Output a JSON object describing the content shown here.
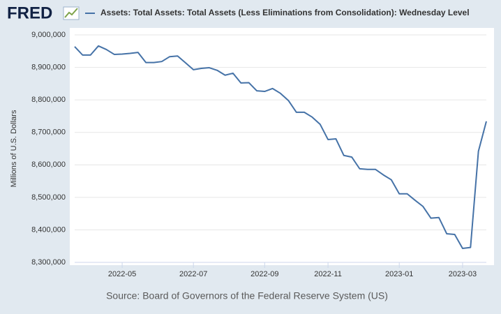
{
  "logo": "FRED",
  "chart_data": {
    "type": "line",
    "title": "Assets: Total Assets: Total Assets (Less Eliminations from Consolidation): Wednesday Level",
    "y_label": "Millions of U.S. Dollars",
    "source": "Source: Board of Governors of the Federal Reserve System (US)",
    "categories": [
      null,
      null,
      null,
      null,
      null,
      null,
      "2022-05",
      null,
      null,
      null,
      null,
      null,
      null,
      null,
      null,
      "2022-07",
      null,
      null,
      null,
      null,
      null,
      null,
      null,
      null,
      "2022-09",
      null,
      null,
      null,
      null,
      null,
      null,
      null,
      "2022-11",
      null,
      null,
      null,
      null,
      null,
      null,
      null,
      null,
      "2023-01",
      null,
      null,
      null,
      null,
      null,
      null,
      null,
      "2023-03",
      null,
      null,
      null
    ],
    "series": [
      {
        "name": "Assets: Total Assets: Total Assets (Less Eliminations from Consolidation): Wednesday Level",
        "color": "#4572a7",
        "values": [
          8964000,
          8938000,
          8938000,
          8966000,
          8955000,
          8940000,
          8941000,
          8943000,
          8946000,
          8915000,
          8915000,
          8918000,
          8933000,
          8935000,
          8914000,
          8893000,
          8897000,
          8899000,
          8891000,
          8876000,
          8882000,
          8852000,
          8853000,
          8828000,
          8826000,
          8835000,
          8820000,
          8798000,
          8762000,
          8762000,
          8747000,
          8725000,
          8678000,
          8680000,
          8629000,
          8624000,
          8588000,
          8586000,
          8586000,
          8569000,
          8554000,
          8511000,
          8511000,
          8491000,
          8472000,
          8436000,
          8438000,
          8388000,
          8386000,
          8343000,
          8346000,
          8642000,
          8734000
        ]
      }
    ],
    "ylim": [
      8300000,
      9000000
    ],
    "yticks": [
      {
        "value": 8300000,
        "label": "8,300,000"
      },
      {
        "value": 8400000,
        "label": "8,400,000"
      },
      {
        "value": 8500000,
        "label": "8,500,000"
      },
      {
        "value": 8600000,
        "label": "8,600,000"
      },
      {
        "value": 8700000,
        "label": "8,700,000"
      },
      {
        "value": 8800000,
        "label": "8,800,000"
      },
      {
        "value": 8900000,
        "label": "8,900,000"
      },
      {
        "value": 9000000,
        "label": "9,000,000"
      }
    ],
    "grid": true
  }
}
